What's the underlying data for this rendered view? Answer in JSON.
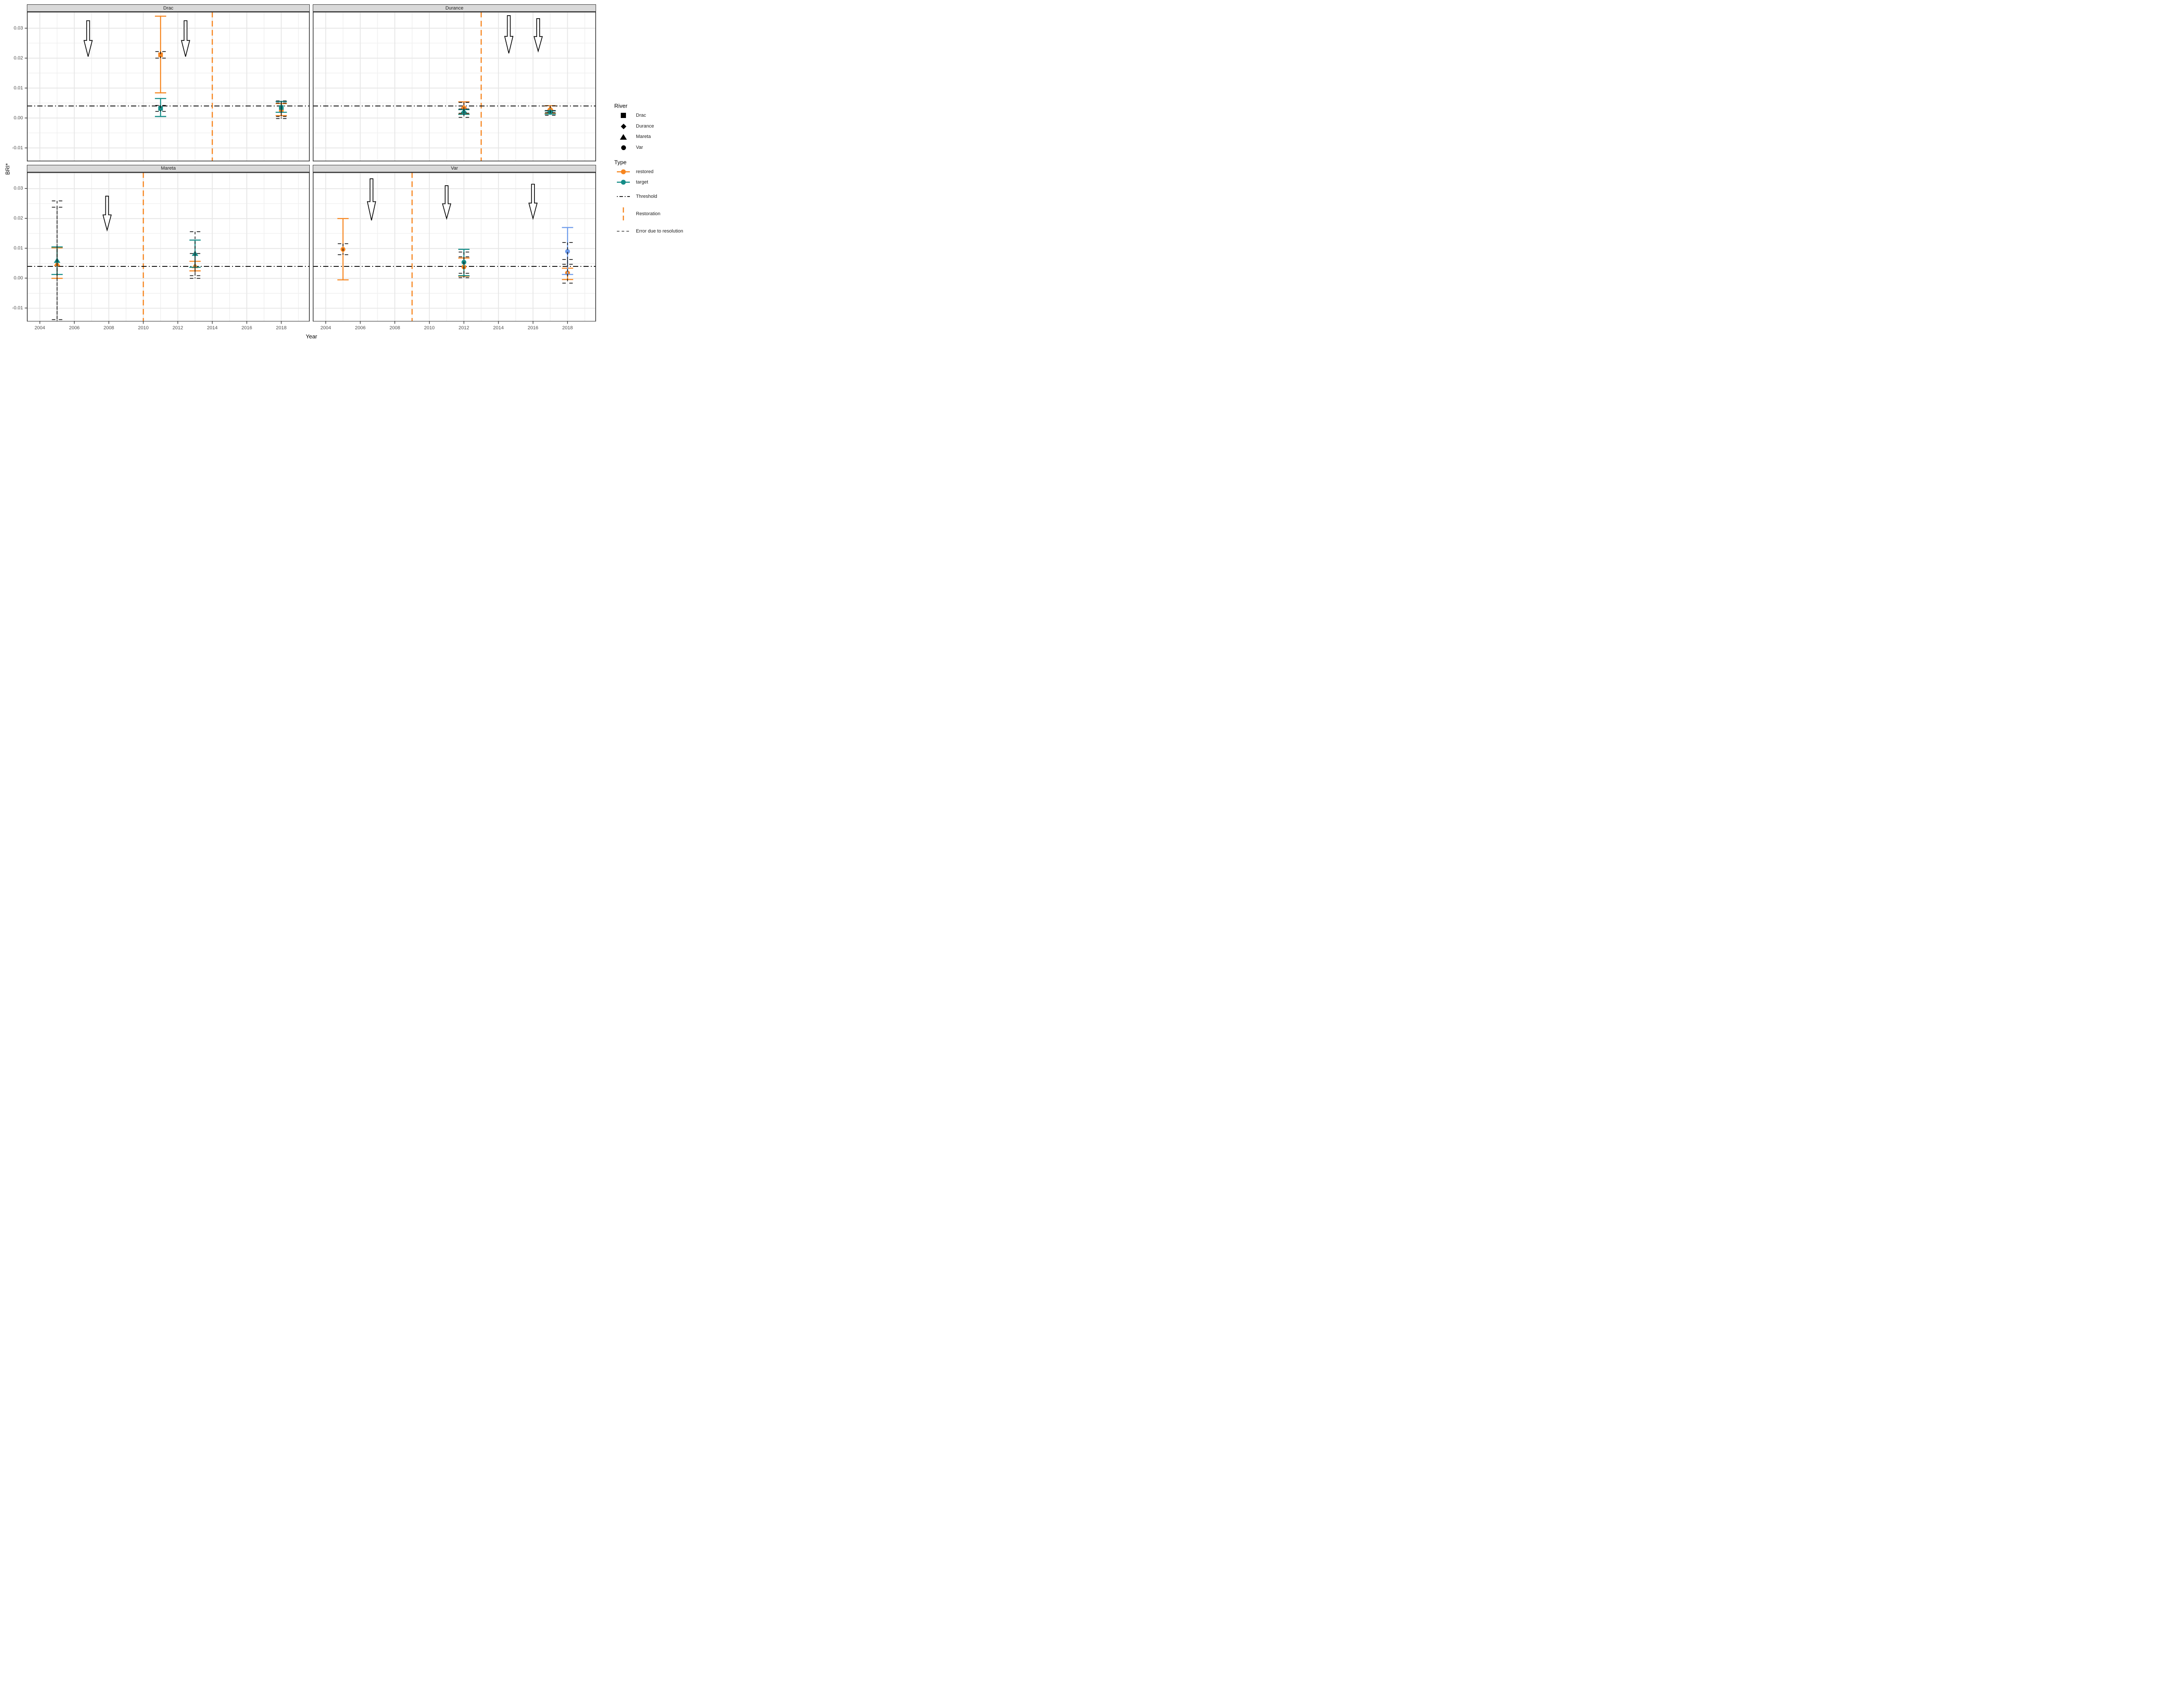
{
  "figure": {
    "y_axis_label": "BRI*",
    "x_axis_label": "Year",
    "colors": {
      "restored": "#F6851F",
      "target": "#148C87",
      "other": "#6D9BEB",
      "threshold": "#000000",
      "restoration": "#F6851F",
      "resolution": "#141414",
      "strip_bg": "#D9D9D9",
      "panel_border": "#333333",
      "grid_major": "#E7E7E7",
      "grid_minor": "#F1F1F1"
    }
  },
  "axes": {
    "x_range": [
      2003.25,
      2019.65
    ],
    "y_range": [
      -0.0145,
      0.0355
    ],
    "x_ticks": [
      2004,
      2006,
      2008,
      2010,
      2012,
      2014,
      2016,
      2018
    ],
    "y_ticks": [
      -0.01,
      0.0,
      0.01,
      0.02,
      0.03
    ],
    "y_tick_labels": [
      "-0.01",
      "0.00",
      "0.01",
      "0.02",
      "0.03"
    ],
    "y_minor": [
      -0.005,
      0.005,
      0.015,
      0.025,
      0.035
    ],
    "threshold": 0.004
  },
  "chart_data": [
    {
      "facet": "Drac",
      "type": "scatter",
      "shape": "square",
      "restoration_year": 2014,
      "arrows": [
        {
          "x": 2006.8,
          "y_top": 0.0325,
          "y_tip": 0.0205
        },
        {
          "x": 2012.45,
          "y_top": 0.0325,
          "y_tip": 0.0205
        }
      ],
      "points": [
        {
          "type": "restored",
          "x": 2011,
          "y": 0.0211,
          "err_lo": 0.0084,
          "err_hi": 0.034,
          "res_lo": 0.02,
          "res_hi": 0.0222
        },
        {
          "type": "target",
          "x": 2011,
          "y": 0.0032,
          "err_lo": 0.0005,
          "err_hi": 0.0065,
          "res_lo": 0.0022,
          "res_hi": 0.0042
        },
        {
          "type": "restored",
          "x": 2018,
          "y": 0.0028,
          "err_lo": 0.0008,
          "err_hi": 0.0048,
          "res_lo": -0.0002,
          "res_hi": 0.005
        },
        {
          "type": "target",
          "x": 2018,
          "y": 0.0035,
          "err_lo": 0.0019,
          "err_hi": 0.0055,
          "res_lo": 0.0005,
          "res_hi": 0.0057
        }
      ]
    },
    {
      "facet": "Durance",
      "type": "scatter",
      "shape": "diamond",
      "restoration_year": 2013,
      "arrows": [
        {
          "x": 2014.6,
          "y_top": 0.0342,
          "y_tip": 0.0216
        },
        {
          "x": 2016.3,
          "y_top": 0.0332,
          "y_tip": 0.0223
        }
      ],
      "points": [
        {
          "type": "restored",
          "x": 2012,
          "y": 0.0034,
          "err_lo": 0.0013,
          "err_hi": 0.0054,
          "res_lo": 0.0016,
          "res_hi": 0.0052
        },
        {
          "type": "target",
          "x": 2012,
          "y": 0.0019,
          "err_lo": 0.0012,
          "err_hi": 0.0028,
          "res_lo": 0.0002,
          "res_hi": 0.003
        },
        {
          "type": "restored",
          "x": 2017,
          "y": 0.0029,
          "err_lo": 0.0015,
          "err_hi": 0.0041,
          "res_lo": 0.0018,
          "res_hi": 0.0041
        },
        {
          "type": "target",
          "x": 2017,
          "y": 0.002,
          "err_lo": 0.0013,
          "err_hi": 0.0024,
          "res_lo": 0.0009,
          "res_hi": 0.0025
        }
      ]
    },
    {
      "facet": "Mareta",
      "type": "scatter",
      "shape": "triangle",
      "restoration_year": 2010,
      "arrows": [
        {
          "x": 2007.9,
          "y_top": 0.0275,
          "y_tip": 0.0161
        }
      ],
      "points": [
        {
          "type": "restored",
          "x": 2005,
          "y": 0.0049,
          "err_lo": 0.0,
          "err_hi": 0.0102,
          "res_lo": -0.0138,
          "res_hi": 0.0238
        },
        {
          "type": "target",
          "x": 2005,
          "y": 0.006,
          "err_lo": 0.0013,
          "err_hi": 0.0105,
          "res_lo": -0.0144,
          "res_hi": 0.0259
        },
        {
          "type": "restored",
          "x": 2013,
          "y": 0.0042,
          "err_lo": 0.0025,
          "err_hi": 0.0057,
          "res_lo": 0.0,
          "res_hi": 0.0083
        },
        {
          "type": "target",
          "x": 2013,
          "y": 0.0083,
          "err_lo": 0.0037,
          "err_hi": 0.0128,
          "res_lo": 0.0009,
          "res_hi": 0.0156
        }
      ]
    },
    {
      "facet": "Var",
      "type": "scatter",
      "shape": "circle",
      "restoration_year": 2009,
      "arrows": [
        {
          "x": 2006.65,
          "y_top": 0.0333,
          "y_tip": 0.0194
        },
        {
          "x": 2011.0,
          "y_top": 0.031,
          "y_tip": 0.02
        },
        {
          "x": 2016.0,
          "y_top": 0.0315,
          "y_tip": 0.02
        }
      ],
      "points": [
        {
          "type": "restored",
          "x": 2005,
          "y": 0.0097,
          "err_lo": -0.0005,
          "err_hi": 0.02,
          "res_lo": 0.0079,
          "res_hi": 0.0116
        },
        {
          "type": "restored",
          "x": 2012,
          "y": 0.0038,
          "err_lo": 0.0007,
          "err_hi": 0.0068,
          "res_lo": 0.0002,
          "res_hi": 0.0072
        },
        {
          "type": "target",
          "x": 2012,
          "y": 0.0054,
          "err_lo": 0.0009,
          "err_hi": 0.0097,
          "res_lo": 0.0017,
          "res_hi": 0.0088
        },
        {
          "type": "restored",
          "x": 2018,
          "y": 0.0018,
          "err_lo": -0.0004,
          "err_hi": 0.0034,
          "res_lo": -0.0016,
          "res_hi": 0.0063
        },
        {
          "type": "other",
          "x": 2018,
          "y": 0.009,
          "err_lo": 0.0013,
          "err_hi": 0.017,
          "res_lo": 0.0047,
          "res_hi": 0.012
        }
      ]
    }
  ],
  "legend": {
    "river_title": "River",
    "river": [
      {
        "label": "Drac",
        "shape": "square"
      },
      {
        "label": "Durance",
        "shape": "diamond"
      },
      {
        "label": "Mareta",
        "shape": "triangle"
      },
      {
        "label": "Var",
        "shape": "circle"
      }
    ],
    "type_title": "Type",
    "type": [
      {
        "label": "restored",
        "color": "#F6851F"
      },
      {
        "label": "target",
        "color": "#148C87"
      }
    ],
    "lines": [
      {
        "label": "Threshold",
        "style": "dashdot"
      },
      {
        "label": "Restoration",
        "style": "orange-dashed"
      },
      {
        "label": "Error due to resolution",
        "style": "dashed"
      }
    ]
  }
}
